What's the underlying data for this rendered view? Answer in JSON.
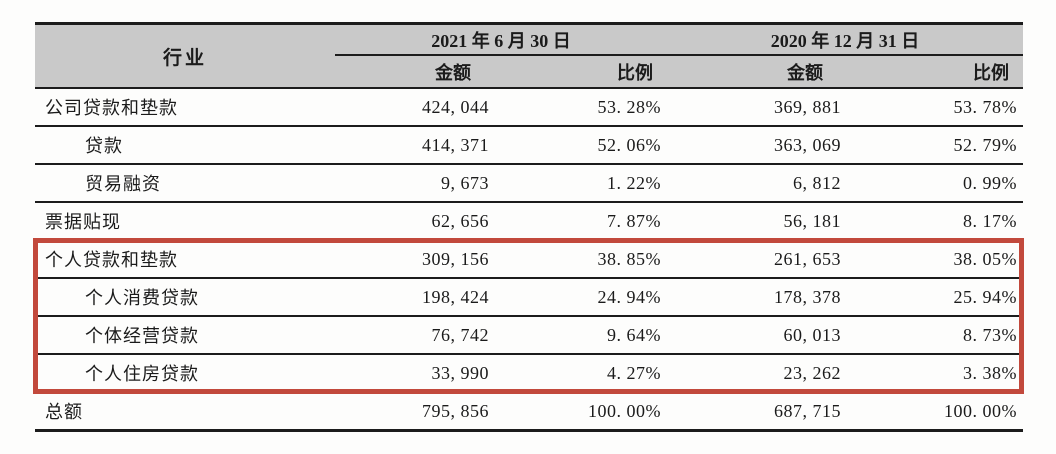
{
  "table": {
    "industry_header": "行业",
    "groups": [
      {
        "date": "2021 年 6 月 30 日",
        "columns": [
          "金额",
          "比例"
        ]
      },
      {
        "date": "2020 年 12 月 31 日",
        "columns": [
          "金额",
          "比例"
        ]
      }
    ],
    "rows": [
      {
        "label": "公司贷款和垫款",
        "values": [
          "424, 044",
          "53. 28%",
          "369, 881",
          "53. 78%"
        ]
      },
      {
        "label": "贷款",
        "values": [
          "414, 371",
          "52. 06%",
          "363, 069",
          "52. 79%"
        ]
      },
      {
        "label": "贸易融资",
        "values": [
          "9, 673",
          "1. 22%",
          "6, 812",
          "0. 99%"
        ]
      },
      {
        "label": "票据贴现",
        "values": [
          "62, 656",
          "7. 87%",
          "56, 181",
          "8. 17%"
        ]
      },
      {
        "label": "个人贷款和垫款",
        "values": [
          "309, 156",
          "38. 85%",
          "261, 653",
          "38. 05%"
        ]
      },
      {
        "label": "个人消费贷款",
        "values": [
          "198, 424",
          "24. 94%",
          "178, 378",
          "25. 94%"
        ]
      },
      {
        "label": "个体经营贷款",
        "values": [
          "76, 742",
          "9. 64%",
          "60, 013",
          "8. 73%"
        ]
      },
      {
        "label": "个人住房贷款",
        "values": [
          "33, 990",
          "4. 27%",
          "23, 262",
          "3. 38%"
        ]
      },
      {
        "label": "总额",
        "values": [
          "795, 856",
          "100. 00%",
          "687, 715",
          "100. 00%"
        ]
      }
    ],
    "highlighted_row_labels": [
      "个人贷款和垫款",
      "个人消费贷款",
      "个体经营贷款",
      "个人住房贷款"
    ],
    "colors": {
      "highlight_border": "#c2493c",
      "header_background": "#c9c9c9",
      "line_color": "#1c1c1c"
    }
  }
}
